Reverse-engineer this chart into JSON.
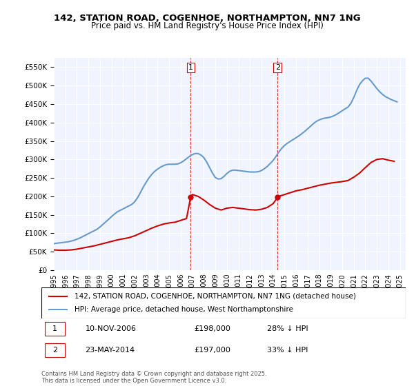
{
  "title_line1": "142, STATION ROAD, COGENHOE, NORTHAMPTON, NN7 1NG",
  "title_line2": "Price paid vs. HM Land Registry's House Price Index (HPI)",
  "legend_line1": "142, STATION ROAD, COGENHOE, NORTHAMPTON, NN7 1NG (detached house)",
  "legend_line2": "HPI: Average price, detached house, West Northamptonshire",
  "footnote": "Contains HM Land Registry data © Crown copyright and database right 2025.\nThis data is licensed under the Open Government Licence v3.0.",
  "sale1_label": "1",
  "sale1_date": "10-NOV-2006",
  "sale1_price": "£198,000",
  "sale1_hpi": "28% ↓ HPI",
  "sale2_label": "2",
  "sale2_date": "23-MAY-2014",
  "sale2_price": "£197,000",
  "sale2_hpi": "33% ↓ HPI",
  "marker1_x": 2006.86,
  "marker1_y": 198000,
  "marker2_x": 2014.39,
  "marker2_y": 197000,
  "vline1_x": 2006.86,
  "vline2_x": 2014.39,
  "red_color": "#cc0000",
  "blue_color": "#6699cc",
  "vline_color": "#cc0000",
  "background_color": "#f0f4ff",
  "ylim": [
    0,
    575000
  ],
  "xlim_start": 1995.0,
  "xlim_end": 2025.5,
  "yticks": [
    0,
    50000,
    100000,
    150000,
    200000,
    250000,
    300000,
    350000,
    400000,
    450000,
    500000,
    550000
  ],
  "xticks": [
    1995,
    1996,
    1997,
    1998,
    1999,
    2000,
    2001,
    2002,
    2003,
    2004,
    2005,
    2006,
    2007,
    2008,
    2009,
    2010,
    2011,
    2012,
    2013,
    2014,
    2015,
    2016,
    2017,
    2018,
    2019,
    2020,
    2021,
    2022,
    2023,
    2024,
    2025
  ],
  "hpi_x": [
    1995.0,
    1995.25,
    1995.5,
    1995.75,
    1996.0,
    1996.25,
    1996.5,
    1996.75,
    1997.0,
    1997.25,
    1997.5,
    1997.75,
    1998.0,
    1998.25,
    1998.5,
    1998.75,
    1999.0,
    1999.25,
    1999.5,
    1999.75,
    2000.0,
    2000.25,
    2000.5,
    2000.75,
    2001.0,
    2001.25,
    2001.5,
    2001.75,
    2002.0,
    2002.25,
    2002.5,
    2002.75,
    2003.0,
    2003.25,
    2003.5,
    2003.75,
    2004.0,
    2004.25,
    2004.5,
    2004.75,
    2005.0,
    2005.25,
    2005.5,
    2005.75,
    2006.0,
    2006.25,
    2006.5,
    2006.75,
    2007.0,
    2007.25,
    2007.5,
    2007.75,
    2008.0,
    2008.25,
    2008.5,
    2008.75,
    2009.0,
    2009.25,
    2009.5,
    2009.75,
    2010.0,
    2010.25,
    2010.5,
    2010.75,
    2011.0,
    2011.25,
    2011.5,
    2011.75,
    2012.0,
    2012.25,
    2012.5,
    2012.75,
    2013.0,
    2013.25,
    2013.5,
    2013.75,
    2014.0,
    2014.25,
    2014.5,
    2014.75,
    2015.0,
    2015.25,
    2015.5,
    2015.75,
    2016.0,
    2016.25,
    2016.5,
    2016.75,
    2017.0,
    2017.25,
    2017.5,
    2017.75,
    2018.0,
    2018.25,
    2018.5,
    2018.75,
    2019.0,
    2019.25,
    2019.5,
    2019.75,
    2020.0,
    2020.25,
    2020.5,
    2020.75,
    2021.0,
    2021.25,
    2021.5,
    2021.75,
    2022.0,
    2022.25,
    2022.5,
    2022.75,
    2023.0,
    2023.25,
    2023.5,
    2023.75,
    2024.0,
    2024.25,
    2024.5,
    2024.75
  ],
  "hpi_y": [
    72000,
    73000,
    74000,
    75000,
    76000,
    77000,
    79000,
    81000,
    84000,
    87000,
    91000,
    95000,
    99000,
    103000,
    107000,
    111000,
    117000,
    124000,
    131000,
    138000,
    145000,
    152000,
    158000,
    162000,
    166000,
    170000,
    174000,
    178000,
    185000,
    196000,
    210000,
    225000,
    238000,
    250000,
    260000,
    268000,
    274000,
    279000,
    283000,
    286000,
    287000,
    287000,
    287000,
    288000,
    291000,
    296000,
    302000,
    308000,
    313000,
    316000,
    316000,
    312000,
    305000,
    293000,
    278000,
    263000,
    251000,
    247000,
    248000,
    254000,
    262000,
    268000,
    271000,
    271000,
    270000,
    269000,
    268000,
    267000,
    266000,
    266000,
    266000,
    267000,
    270000,
    275000,
    281000,
    289000,
    297000,
    308000,
    320000,
    330000,
    338000,
    344000,
    349000,
    354000,
    359000,
    364000,
    370000,
    376000,
    383000,
    390000,
    397000,
    403000,
    407000,
    410000,
    412000,
    413000,
    415000,
    418000,
    422000,
    427000,
    432000,
    437000,
    442000,
    452000,
    468000,
    487000,
    503000,
    513000,
    520000,
    520000,
    512000,
    502000,
    492000,
    483000,
    476000,
    470000,
    466000,
    462000,
    459000,
    456000
  ],
  "red_x": [
    1995.0,
    1995.5,
    1996.0,
    1996.5,
    1997.0,
    1997.5,
    1998.0,
    1998.5,
    1999.0,
    1999.5,
    2000.0,
    2000.5,
    2001.0,
    2001.5,
    2002.0,
    2002.5,
    2003.0,
    2003.5,
    2004.0,
    2004.5,
    2005.0,
    2005.5,
    2006.0,
    2006.5,
    2006.86,
    2007.0,
    2007.5,
    2008.0,
    2008.5,
    2009.0,
    2009.5,
    2010.0,
    2010.5,
    2011.0,
    2011.5,
    2012.0,
    2012.5,
    2013.0,
    2013.5,
    2014.0,
    2014.39,
    2014.5,
    2015.0,
    2015.5,
    2016.0,
    2016.5,
    2017.0,
    2017.5,
    2018.0,
    2018.5,
    2019.0,
    2019.5,
    2020.0,
    2020.5,
    2021.0,
    2021.5,
    2022.0,
    2022.5,
    2023.0,
    2023.5,
    2024.0,
    2024.5
  ],
  "red_y": [
    55000,
    54000,
    54000,
    55000,
    57000,
    60000,
    63000,
    66000,
    70000,
    74000,
    78000,
    82000,
    85000,
    88000,
    93000,
    100000,
    107000,
    114000,
    120000,
    125000,
    128000,
    130000,
    135000,
    140000,
    198000,
    205000,
    200000,
    190000,
    178000,
    168000,
    163000,
    168000,
    170000,
    168000,
    166000,
    164000,
    163000,
    165000,
    170000,
    180000,
    197000,
    200000,
    205000,
    210000,
    215000,
    218000,
    222000,
    226000,
    230000,
    233000,
    236000,
    238000,
    240000,
    243000,
    252000,
    263000,
    278000,
    292000,
    300000,
    302000,
    298000,
    295000
  ]
}
